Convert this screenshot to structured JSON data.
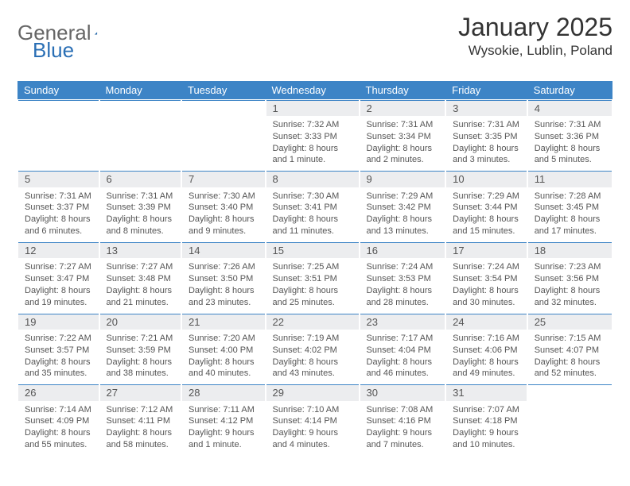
{
  "brand": {
    "part1": "General",
    "part2": "Blue"
  },
  "title": "January 2025",
  "location": "Wysokie, Lublin, Poland",
  "colors": {
    "header_bg": "#3d84c6",
    "header_text": "#ffffff",
    "daynum_bg": "#ecedef",
    "border_top": "#3d84c6",
    "body_text": "#555555",
    "title_text": "#333333",
    "logo_gray": "#666666",
    "logo_blue": "#2a6fb5",
    "page_bg": "#ffffff"
  },
  "typography": {
    "title_fontsize": 32,
    "location_fontsize": 17,
    "header_fontsize": 13,
    "daynum_fontsize": 13,
    "detail_fontsize": 11,
    "font_family": "Arial"
  },
  "day_labels": [
    "Sunday",
    "Monday",
    "Tuesday",
    "Wednesday",
    "Thursday",
    "Friday",
    "Saturday"
  ],
  "weeks": [
    [
      null,
      null,
      null,
      {
        "n": "1",
        "sr": "7:32 AM",
        "ss": "3:33 PM",
        "dl": "8 hours and 1 minute."
      },
      {
        "n": "2",
        "sr": "7:31 AM",
        "ss": "3:34 PM",
        "dl": "8 hours and 2 minutes."
      },
      {
        "n": "3",
        "sr": "7:31 AM",
        "ss": "3:35 PM",
        "dl": "8 hours and 3 minutes."
      },
      {
        "n": "4",
        "sr": "7:31 AM",
        "ss": "3:36 PM",
        "dl": "8 hours and 5 minutes."
      }
    ],
    [
      {
        "n": "5",
        "sr": "7:31 AM",
        "ss": "3:37 PM",
        "dl": "8 hours and 6 minutes."
      },
      {
        "n": "6",
        "sr": "7:31 AM",
        "ss": "3:39 PM",
        "dl": "8 hours and 8 minutes."
      },
      {
        "n": "7",
        "sr": "7:30 AM",
        "ss": "3:40 PM",
        "dl": "8 hours and 9 minutes."
      },
      {
        "n": "8",
        "sr": "7:30 AM",
        "ss": "3:41 PM",
        "dl": "8 hours and 11 minutes."
      },
      {
        "n": "9",
        "sr": "7:29 AM",
        "ss": "3:42 PM",
        "dl": "8 hours and 13 minutes."
      },
      {
        "n": "10",
        "sr": "7:29 AM",
        "ss": "3:44 PM",
        "dl": "8 hours and 15 minutes."
      },
      {
        "n": "11",
        "sr": "7:28 AM",
        "ss": "3:45 PM",
        "dl": "8 hours and 17 minutes."
      }
    ],
    [
      {
        "n": "12",
        "sr": "7:27 AM",
        "ss": "3:47 PM",
        "dl": "8 hours and 19 minutes."
      },
      {
        "n": "13",
        "sr": "7:27 AM",
        "ss": "3:48 PM",
        "dl": "8 hours and 21 minutes."
      },
      {
        "n": "14",
        "sr": "7:26 AM",
        "ss": "3:50 PM",
        "dl": "8 hours and 23 minutes."
      },
      {
        "n": "15",
        "sr": "7:25 AM",
        "ss": "3:51 PM",
        "dl": "8 hours and 25 minutes."
      },
      {
        "n": "16",
        "sr": "7:24 AM",
        "ss": "3:53 PM",
        "dl": "8 hours and 28 minutes."
      },
      {
        "n": "17",
        "sr": "7:24 AM",
        "ss": "3:54 PM",
        "dl": "8 hours and 30 minutes."
      },
      {
        "n": "18",
        "sr": "7:23 AM",
        "ss": "3:56 PM",
        "dl": "8 hours and 32 minutes."
      }
    ],
    [
      {
        "n": "19",
        "sr": "7:22 AM",
        "ss": "3:57 PM",
        "dl": "8 hours and 35 minutes."
      },
      {
        "n": "20",
        "sr": "7:21 AM",
        "ss": "3:59 PM",
        "dl": "8 hours and 38 minutes."
      },
      {
        "n": "21",
        "sr": "7:20 AM",
        "ss": "4:00 PM",
        "dl": "8 hours and 40 minutes."
      },
      {
        "n": "22",
        "sr": "7:19 AM",
        "ss": "4:02 PM",
        "dl": "8 hours and 43 minutes."
      },
      {
        "n": "23",
        "sr": "7:17 AM",
        "ss": "4:04 PM",
        "dl": "8 hours and 46 minutes."
      },
      {
        "n": "24",
        "sr": "7:16 AM",
        "ss": "4:06 PM",
        "dl": "8 hours and 49 minutes."
      },
      {
        "n": "25",
        "sr": "7:15 AM",
        "ss": "4:07 PM",
        "dl": "8 hours and 52 minutes."
      }
    ],
    [
      {
        "n": "26",
        "sr": "7:14 AM",
        "ss": "4:09 PM",
        "dl": "8 hours and 55 minutes."
      },
      {
        "n": "27",
        "sr": "7:12 AM",
        "ss": "4:11 PM",
        "dl": "8 hours and 58 minutes."
      },
      {
        "n": "28",
        "sr": "7:11 AM",
        "ss": "4:12 PM",
        "dl": "9 hours and 1 minute."
      },
      {
        "n": "29",
        "sr": "7:10 AM",
        "ss": "4:14 PM",
        "dl": "9 hours and 4 minutes."
      },
      {
        "n": "30",
        "sr": "7:08 AM",
        "ss": "4:16 PM",
        "dl": "9 hours and 7 minutes."
      },
      {
        "n": "31",
        "sr": "7:07 AM",
        "ss": "4:18 PM",
        "dl": "9 hours and 10 minutes."
      },
      null
    ]
  ],
  "labels": {
    "sunrise": "Sunrise:",
    "sunset": "Sunset:",
    "daylight": "Daylight:"
  }
}
